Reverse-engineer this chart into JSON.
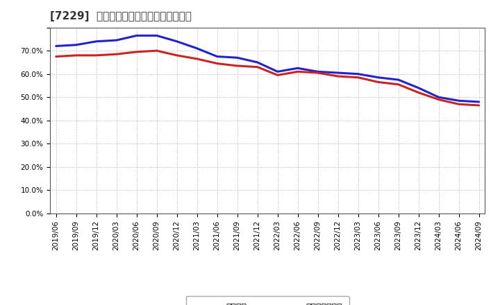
{
  "title": "[7229]  固定比率、固定長期適合率の推移",
  "series": [
    {
      "name": "固定比率",
      "color": "#2222cc",
      "data": [
        [
          "2019/06",
          72.0
        ],
        [
          "2019/09",
          72.5
        ],
        [
          "2019/12",
          74.0
        ],
        [
          "2020/03",
          74.5
        ],
        [
          "2020/06",
          76.5
        ],
        [
          "2020/09",
          76.5
        ],
        [
          "2020/12",
          74.0
        ],
        [
          "2021/03",
          71.0
        ],
        [
          "2021/06",
          67.5
        ],
        [
          "2021/09",
          67.0
        ],
        [
          "2021/12",
          65.0
        ],
        [
          "2022/03",
          61.0
        ],
        [
          "2022/06",
          62.5
        ],
        [
          "2022/09",
          61.0
        ],
        [
          "2022/12",
          60.5
        ],
        [
          "2023/03",
          60.0
        ],
        [
          "2023/06",
          58.5
        ],
        [
          "2023/09",
          57.5
        ],
        [
          "2023/12",
          54.0
        ],
        [
          "2024/03",
          50.0
        ],
        [
          "2024/06",
          48.5
        ],
        [
          "2024/09",
          48.0
        ]
      ]
    },
    {
      "name": "固定長期適合率",
      "color": "#cc2222",
      "data": [
        [
          "2019/06",
          67.5
        ],
        [
          "2019/09",
          68.0
        ],
        [
          "2019/12",
          68.0
        ],
        [
          "2020/03",
          68.5
        ],
        [
          "2020/06",
          69.5
        ],
        [
          "2020/09",
          70.0
        ],
        [
          "2020/12",
          68.0
        ],
        [
          "2021/03",
          66.5
        ],
        [
          "2021/06",
          64.5
        ],
        [
          "2021/09",
          63.5
        ],
        [
          "2021/12",
          63.0
        ],
        [
          "2022/03",
          59.5
        ],
        [
          "2022/06",
          61.0
        ],
        [
          "2022/09",
          60.5
        ],
        [
          "2022/12",
          59.0
        ],
        [
          "2023/03",
          58.5
        ],
        [
          "2023/06",
          56.5
        ],
        [
          "2023/09",
          55.5
        ],
        [
          "2023/12",
          52.0
        ],
        [
          "2024/03",
          49.0
        ],
        [
          "2024/06",
          47.0
        ],
        [
          "2024/09",
          46.5
        ]
      ]
    }
  ],
  "ylim": [
    0,
    80
  ],
  "yticks": [
    0,
    10,
    20,
    30,
    40,
    50,
    60,
    70,
    80
  ],
  "ytick_labels": [
    "0.0%",
    "10.0%",
    "20.0%",
    "30.0%",
    "40.0%",
    "50.0%",
    "60.0%",
    "70.0%",
    ""
  ],
  "background_color": "#ffffff",
  "plot_bg_color": "#ffffff",
  "grid_color": "#999999",
  "title_fontsize": 11,
  "legend_fontsize": 9,
  "tick_fontsize": 7.5,
  "line_width": 2.2
}
